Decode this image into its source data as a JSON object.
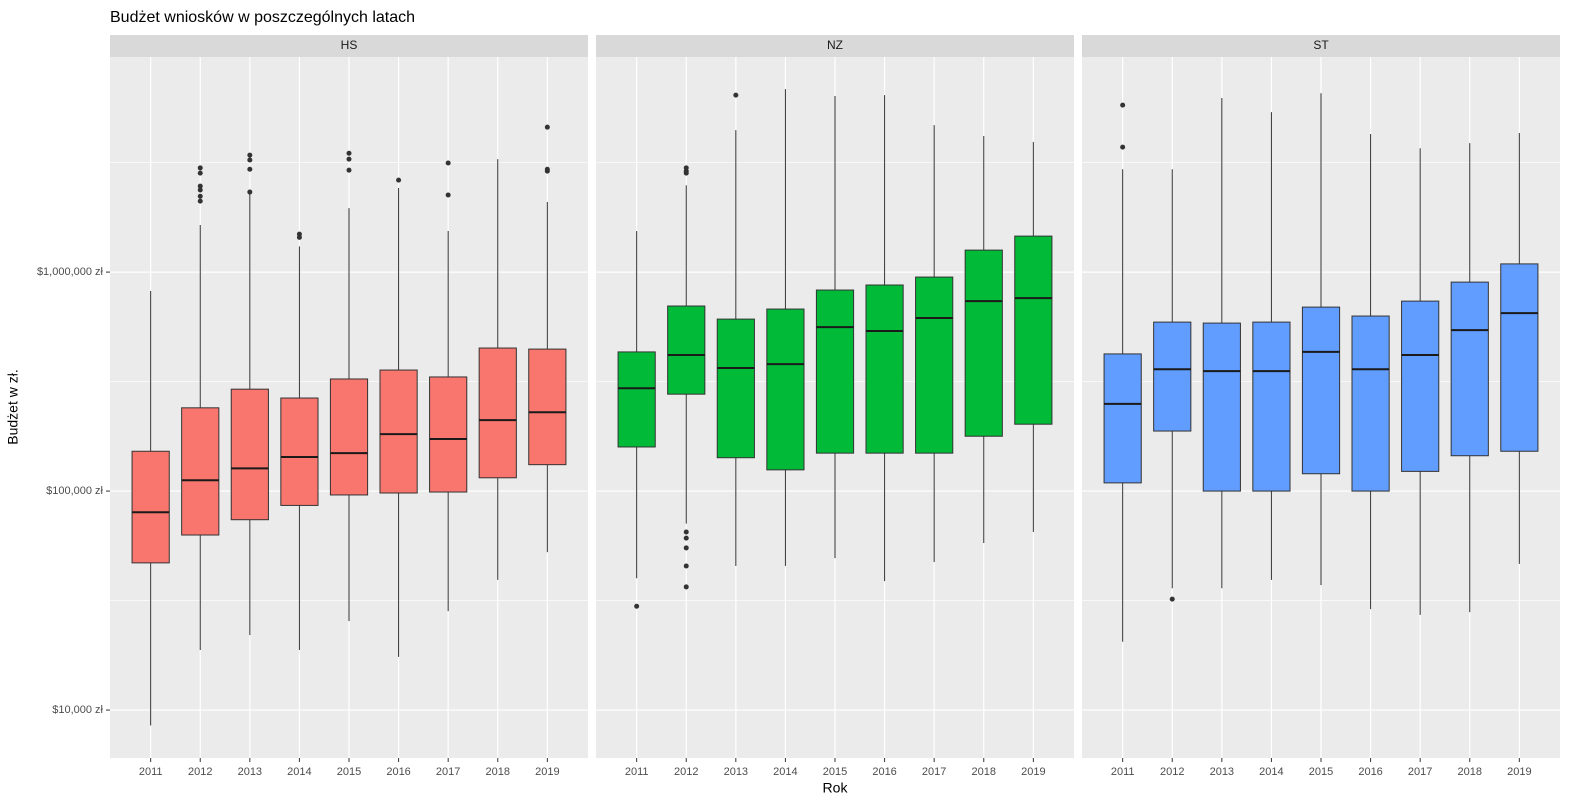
{
  "chart_data": {
    "type": "boxplot",
    "title": "Budżet wniosków w poszczególnych latach",
    "x_label": "Rok",
    "y_label": "Budżet w zł.",
    "log_scale": true,
    "grid": true,
    "categories": [
      "2011",
      "2012",
      "2013",
      "2014",
      "2015",
      "2016",
      "2017",
      "2018",
      "2019"
    ],
    "ylim": [
      6040,
      9600000
    ],
    "yticks": [
      {
        "value": 10000,
        "label": "$10,000 zł"
      },
      {
        "value": 100000,
        "label": "$100,000 zł"
      },
      {
        "value": 1000000,
        "label": "$1,000,000 zł"
      }
    ],
    "facets": [
      {
        "name": "HS",
        "color": "#F8766D",
        "boxes": [
          {
            "low": 8500,
            "q1": 47000,
            "median": 80000,
            "q3": 152000,
            "high": 820000,
            "outliers": []
          },
          {
            "low": 18800,
            "q1": 63000,
            "median": 112000,
            "q3": 240000,
            "high": 1640000,
            "outliers": [
              2990000,
              2830000,
              2470000,
              2370000,
              2220000,
              2110000
            ]
          },
          {
            "low": 22000,
            "q1": 74000,
            "median": 127000,
            "q3": 292000,
            "high": 2370000,
            "outliers": [
              3420000,
              3250000,
              2950000,
              2320000
            ]
          },
          {
            "low": 18800,
            "q1": 86000,
            "median": 143000,
            "q3": 266000,
            "high": 1310000,
            "outliers": [
              1490000,
              1440000
            ]
          },
          {
            "low": 25500,
            "q1": 96000,
            "median": 149000,
            "q3": 325000,
            "high": 1960000,
            "outliers": [
              3490000,
              3280000,
              2920000
            ]
          },
          {
            "low": 17500,
            "q1": 98000,
            "median": 182000,
            "q3": 357000,
            "high": 2420000,
            "outliers": [
              2630000
            ]
          },
          {
            "low": 28300,
            "q1": 99000,
            "median": 173000,
            "q3": 332000,
            "high": 1540000,
            "outliers": [
              3150000,
              2250000
            ]
          },
          {
            "low": 39300,
            "q1": 115000,
            "median": 211000,
            "q3": 450000,
            "high": 3280000,
            "outliers": []
          },
          {
            "low": 52600,
            "q1": 132000,
            "median": 229000,
            "q3": 445000,
            "high": 2090000,
            "outliers": [
              4590000,
              2950000,
              2890000
            ]
          }
        ]
      },
      {
        "name": "NZ",
        "color": "#00BA38",
        "boxes": [
          {
            "low": 40000,
            "q1": 159000,
            "median": 295000,
            "q3": 432000,
            "high": 1540000,
            "outliers": [
              29800
            ]
          },
          {
            "low": 71000,
            "q1": 277000,
            "median": 418000,
            "q3": 700000,
            "high": 2490000,
            "outliers": [
              2990000,
              2890000,
              2830000,
              65000,
              61000,
              55000,
              45500,
              36500
            ]
          },
          {
            "low": 45500,
            "q1": 142000,
            "median": 365000,
            "q3": 610000,
            "high": 4450000,
            "outliers": [
              6430000
            ]
          },
          {
            "low": 45500,
            "q1": 125000,
            "median": 380000,
            "q3": 678000,
            "high": 6850000,
            "outliers": []
          },
          {
            "low": 49400,
            "q1": 149000,
            "median": 561000,
            "q3": 828000,
            "high": 6370000,
            "outliers": []
          },
          {
            "low": 38800,
            "q1": 149000,
            "median": 538000,
            "q3": 873000,
            "high": 6430000,
            "outliers": []
          },
          {
            "low": 47400,
            "q1": 149000,
            "median": 617000,
            "q3": 949000,
            "high": 4690000,
            "outliers": []
          },
          {
            "low": 57900,
            "q1": 178000,
            "median": 737000,
            "q3": 1260000,
            "high": 4180000,
            "outliers": []
          },
          {
            "low": 65000,
            "q1": 202000,
            "median": 761000,
            "q3": 1460000,
            "high": 3930000,
            "outliers": []
          }
        ]
      },
      {
        "name": "ST",
        "color": "#619CFF",
        "boxes": [
          {
            "low": 20500,
            "q1": 109000,
            "median": 250000,
            "q3": 423000,
            "high": 2950000,
            "outliers": [
              5790000,
              3720000
            ]
          },
          {
            "low": 36000,
            "q1": 188000,
            "median": 360000,
            "q3": 591000,
            "high": 2950000,
            "outliers": [
              32100
            ]
          },
          {
            "low": 36000,
            "q1": 100000,
            "median": 353000,
            "q3": 585000,
            "high": 6240000,
            "outliers": []
          },
          {
            "low": 39300,
            "q1": 100000,
            "median": 353000,
            "q3": 591000,
            "high": 5380000,
            "outliers": []
          },
          {
            "low": 37200,
            "q1": 120000,
            "median": 432000,
            "q3": 692000,
            "high": 6560000,
            "outliers": []
          },
          {
            "low": 28900,
            "q1": 100000,
            "median": 360000,
            "q3": 630000,
            "high": 4270000,
            "outliers": []
          },
          {
            "low": 27200,
            "q1": 123000,
            "median": 418000,
            "q3": 737000,
            "high": 3680000,
            "outliers": []
          },
          {
            "low": 28000,
            "q1": 145000,
            "median": 543000,
            "q3": 900000,
            "high": 3880000,
            "outliers": []
          },
          {
            "low": 46500,
            "q1": 152000,
            "median": 650000,
            "q3": 1090000,
            "high": 4320000,
            "outliers": []
          }
        ]
      }
    ]
  }
}
